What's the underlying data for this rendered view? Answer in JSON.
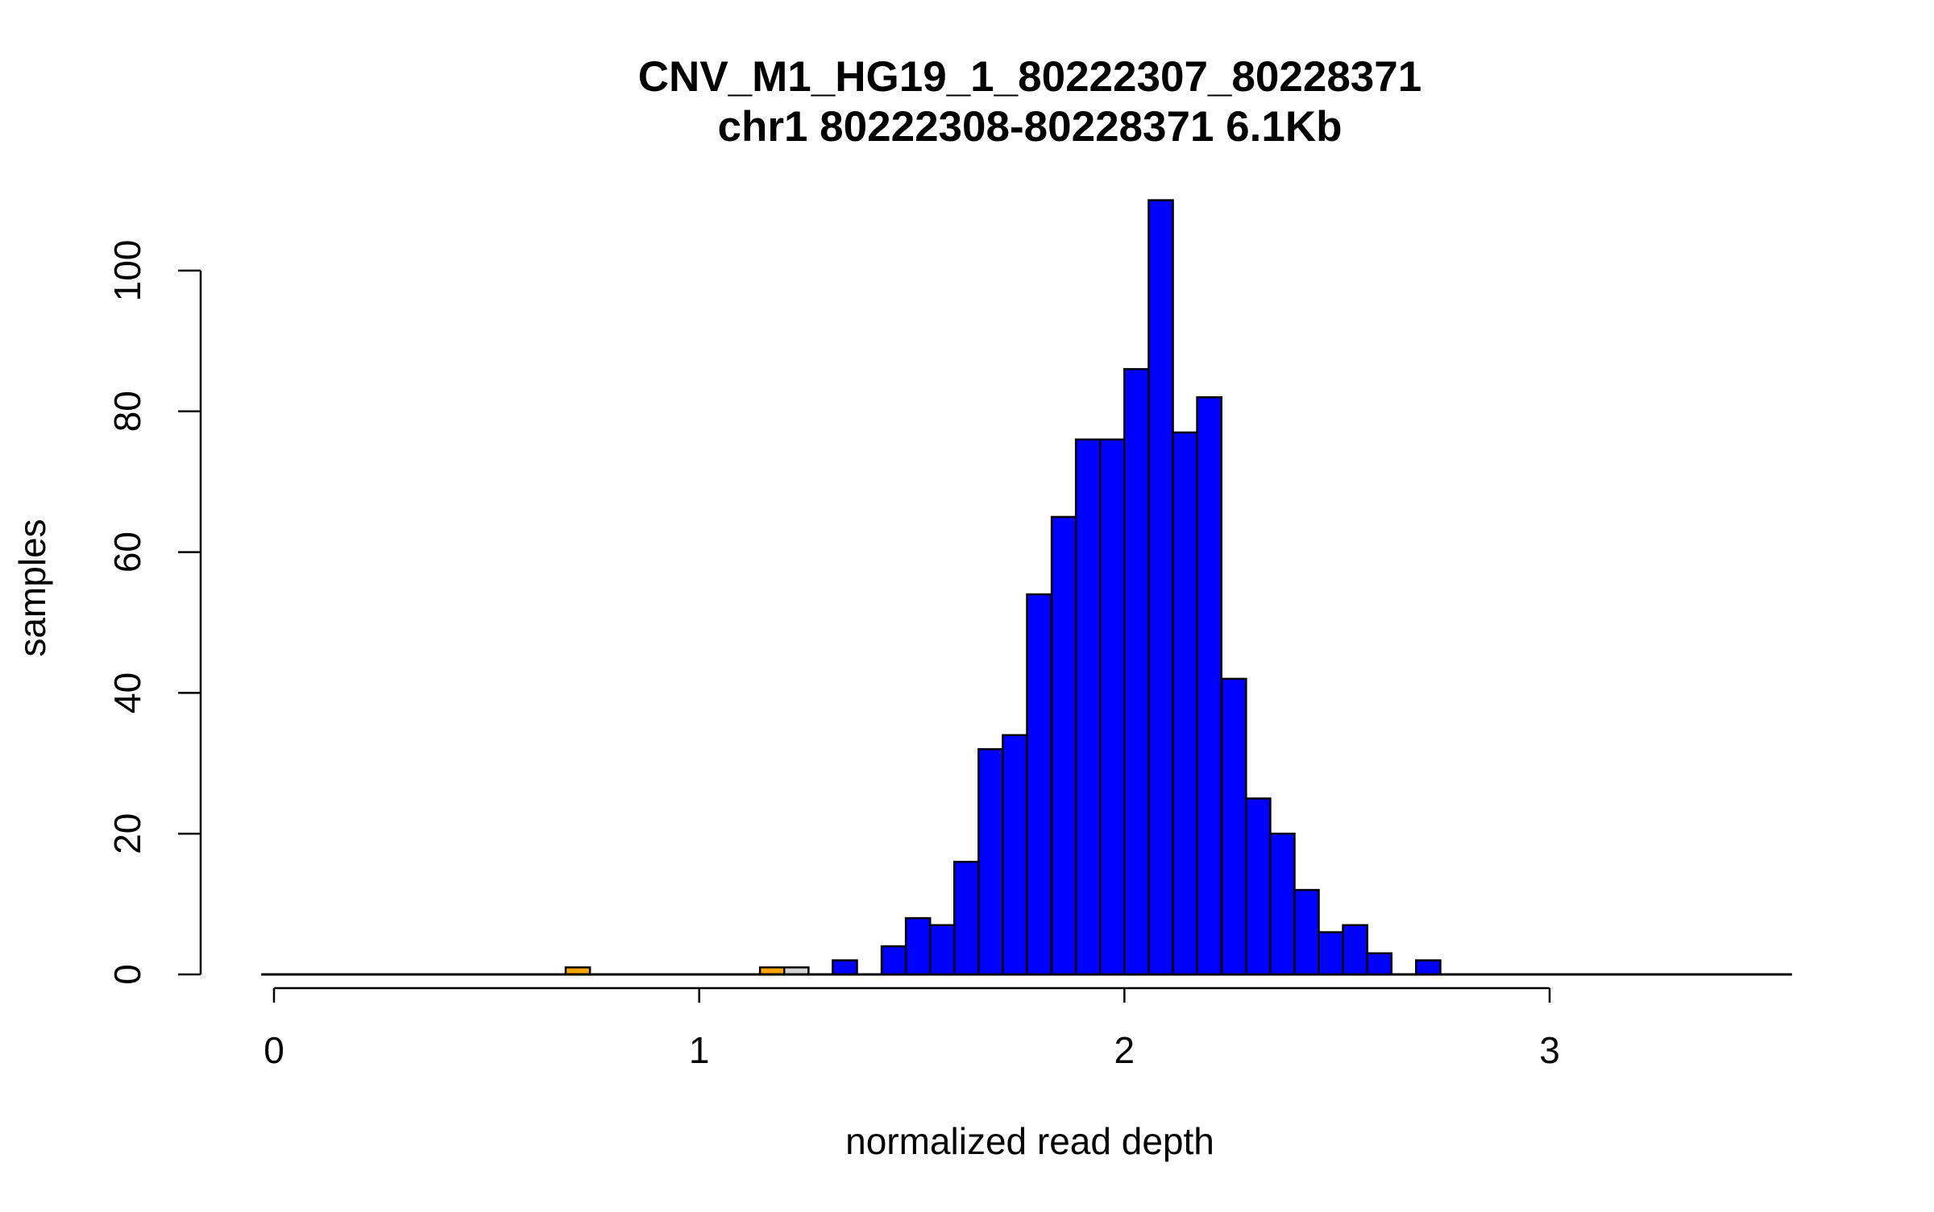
{
  "chart_data": {
    "type": "bar",
    "title": "CNV_M1_HG19_1_80222307_80228371",
    "subtitle": "chr1 80222308-80228371 6.1Kb",
    "xlabel": "normalized read depth",
    "ylabel": "samples",
    "xlim": [
      -0.03,
      3.57
    ],
    "ylim": [
      0,
      110
    ],
    "x_ticks": [
      0,
      1,
      2,
      3
    ],
    "y_ticks": [
      0,
      20,
      40,
      60,
      80,
      100
    ],
    "bin_width": 0.0571,
    "range": [
      -0.03,
      3.57
    ],
    "colors": {
      "main": "#0000ff",
      "deletion": "#ffa500",
      "uncertain": "#d3d3d3",
      "outline": "#000000"
    },
    "bins": [
      {
        "x": 0.686,
        "value": 1,
        "group": "deletion"
      },
      {
        "x": 1.143,
        "value": 1,
        "group": "deletion"
      },
      {
        "x": 1.2,
        "value": 1,
        "group": "uncertain"
      },
      {
        "x": 1.314,
        "value": 2,
        "group": "main"
      },
      {
        "x": 1.429,
        "value": 4,
        "group": "main"
      },
      {
        "x": 1.486,
        "value": 8,
        "group": "main"
      },
      {
        "x": 1.543,
        "value": 7,
        "group": "main"
      },
      {
        "x": 1.6,
        "value": 16,
        "group": "main"
      },
      {
        "x": 1.657,
        "value": 32,
        "group": "main"
      },
      {
        "x": 1.714,
        "value": 34,
        "group": "main"
      },
      {
        "x": 1.771,
        "value": 54,
        "group": "main"
      },
      {
        "x": 1.829,
        "value": 65,
        "group": "main"
      },
      {
        "x": 1.886,
        "value": 76,
        "group": "main"
      },
      {
        "x": 1.943,
        "value": 76,
        "group": "main"
      },
      {
        "x": 2.0,
        "value": 86,
        "group": "main"
      },
      {
        "x": 2.057,
        "value": 110,
        "group": "main"
      },
      {
        "x": 2.114,
        "value": 77,
        "group": "main"
      },
      {
        "x": 2.171,
        "value": 82,
        "group": "main"
      },
      {
        "x": 2.229,
        "value": 42,
        "group": "main"
      },
      {
        "x": 2.286,
        "value": 25,
        "group": "main"
      },
      {
        "x": 2.343,
        "value": 20,
        "group": "main"
      },
      {
        "x": 2.4,
        "value": 12,
        "group": "main"
      },
      {
        "x": 2.457,
        "value": 6,
        "group": "main"
      },
      {
        "x": 2.514,
        "value": 7,
        "group": "main"
      },
      {
        "x": 2.571,
        "value": 3,
        "group": "main"
      },
      {
        "x": 2.686,
        "value": 2,
        "group": "main"
      }
    ]
  }
}
